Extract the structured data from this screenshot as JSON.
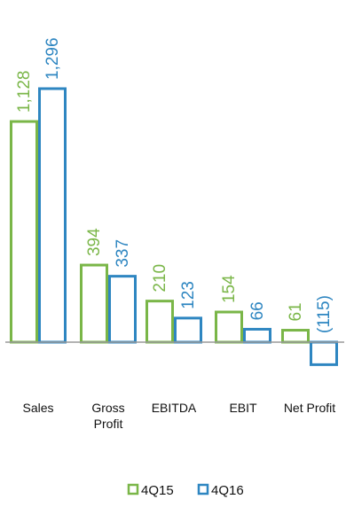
{
  "chart_data": {
    "type": "bar",
    "categories": [
      "Sales",
      "Gross Profit",
      "EBITDA",
      "EBIT",
      "Net Profit"
    ],
    "category_lines": [
      [
        "Sales"
      ],
      [
        "Gross",
        "Profit"
      ],
      [
        "EBITDA"
      ],
      [
        "EBIT"
      ],
      [
        "Net Profit"
      ]
    ],
    "series": [
      {
        "name": "4Q15",
        "color": "#7AB648",
        "values": [
          1128,
          394,
          210,
          154,
          61
        ],
        "labels": [
          "1,128",
          "394",
          "210",
          "154",
          "61"
        ]
      },
      {
        "name": "4Q16",
        "color": "#2E86C1",
        "values": [
          1296,
          337,
          123,
          66,
          -115
        ],
        "labels": [
          "1,296",
          "337",
          "123",
          "66",
          "(115)"
        ]
      }
    ],
    "ylim": [
      -150,
      1400
    ],
    "grid": false,
    "legend": "bottom-center",
    "title": "",
    "xlabel": "",
    "ylabel": ""
  }
}
